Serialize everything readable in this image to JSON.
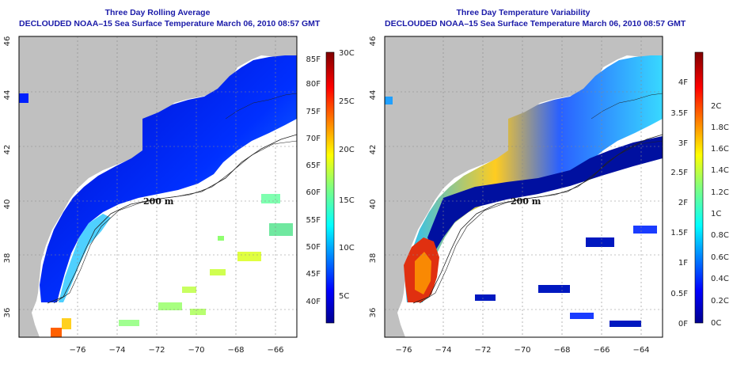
{
  "left_panel": {
    "title": "Three Day Rolling Average",
    "subtitle": "DECLOUDED NOAA–15 Sea Surface Temperature March 06, 2010 08:57 GMT",
    "contour_label": "200 m",
    "colorbar_fahrenheit": [
      "85F",
      "80F",
      "75F",
      "70F",
      "65F",
      "60F",
      "55F",
      "50F",
      "45F",
      "40F"
    ],
    "colorbar_celsius": [
      "30C",
      "25C",
      "20C",
      "15C",
      "10C",
      "5C"
    ]
  },
  "right_panel": {
    "title": "Three Day Temperature Variability",
    "subtitle": "DECLOUDED NOAA–15 Sea Surface Temperature March 06, 2010 08:57 GMT",
    "contour_label": "200 m",
    "colorbar_fahrenheit": [
      "4F",
      "3.5F",
      "3F",
      "2.5F",
      "2F",
      "1.5F",
      "1F",
      "0.5F",
      "0F"
    ],
    "colorbar_celsius": [
      "2C",
      "1.8C",
      "1.6C",
      "1.4C",
      "1.2C",
      "1C",
      "0.8C",
      "0.6C",
      "0.4C",
      "0.2C",
      "0C"
    ]
  },
  "axes": {
    "longitude_ticks": [
      "−76",
      "−74",
      "−72",
      "−70",
      "−68",
      "−66",
      "−64"
    ],
    "latitude_ticks": [
      "36",
      "38",
      "40",
      "42",
      "44",
      "46"
    ]
  },
  "colors": {
    "title_blue": "#1a1aa8",
    "land": "#c0c0c0",
    "no_data": "#ffffff",
    "jet_scale": [
      "#00008f",
      "#0000ff",
      "#007fff",
      "#00ffff",
      "#7fff7f",
      "#ffff00",
      "#ff7f00",
      "#ff0000",
      "#7f0000"
    ]
  }
}
